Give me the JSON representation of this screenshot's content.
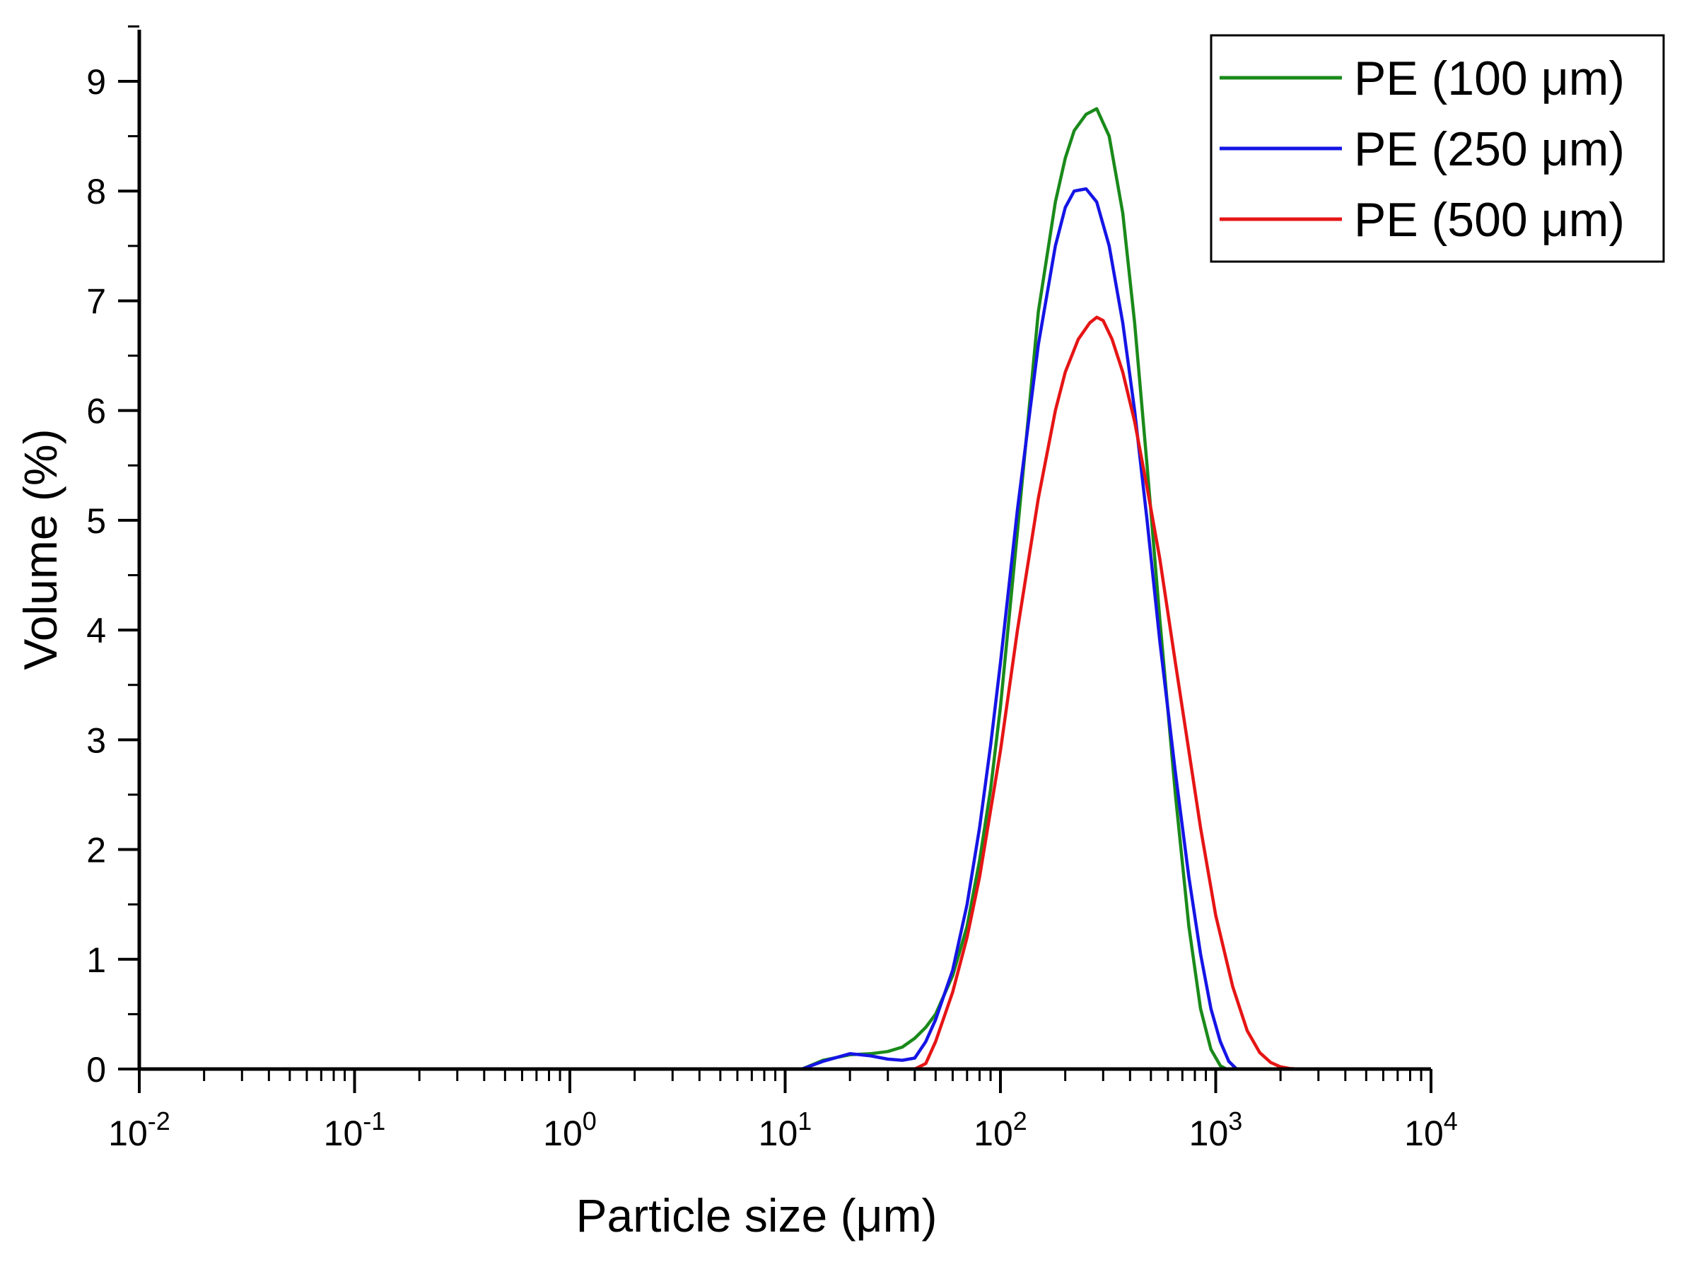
{
  "chart_data": {
    "type": "line",
    "title": "",
    "xlabel": "Particle size (μm)",
    "ylabel": "Volume (%)",
    "xscale": "log",
    "xlim": [
      0.01,
      10000
    ],
    "ylim": [
      0,
      9.5
    ],
    "x_tick_labels": [
      {
        "base": "10",
        "exp": "-2"
      },
      {
        "base": "10",
        "exp": "-1"
      },
      {
        "base": "10",
        "exp": "0"
      },
      {
        "base": "10",
        "exp": "1"
      },
      {
        "base": "10",
        "exp": "2"
      },
      {
        "base": "10",
        "exp": "3"
      },
      {
        "base": "10",
        "exp": "4"
      }
    ],
    "y_tick_labels": [
      "0",
      "1",
      "2",
      "3",
      "4",
      "5",
      "6",
      "7",
      "8",
      "9"
    ],
    "legend_position": "top-right",
    "grid": false,
    "series": [
      {
        "name": "PE (100 μm)",
        "color": "#1a8a1a",
        "x": [
          0.01,
          12,
          15,
          20,
          25,
          30,
          35,
          40,
          45,
          50,
          60,
          70,
          80,
          90,
          100,
          120,
          150,
          180,
          200,
          220,
          250,
          280,
          320,
          370,
          420,
          480,
          550,
          650,
          750,
          850,
          950,
          1050,
          1120,
          10000
        ],
        "y": [
          0,
          0,
          0.08,
          0.13,
          0.14,
          0.16,
          0.2,
          0.28,
          0.38,
          0.5,
          0.85,
          1.3,
          1.9,
          2.55,
          3.3,
          4.9,
          6.9,
          7.9,
          8.3,
          8.55,
          8.7,
          8.75,
          8.5,
          7.8,
          6.8,
          5.5,
          4.1,
          2.5,
          1.3,
          0.55,
          0.18,
          0.03,
          0,
          0
        ]
      },
      {
        "name": "PE (250 μm)",
        "color": "#1515e6",
        "x": [
          0.01,
          12,
          15,
          20,
          25,
          30,
          35,
          40,
          45,
          50,
          60,
          70,
          80,
          90,
          100,
          120,
          150,
          180,
          200,
          220,
          250,
          280,
          320,
          370,
          420,
          480,
          550,
          650,
          750,
          850,
          950,
          1050,
          1150,
          1250,
          10000
        ],
        "y": [
          0,
          0,
          0.07,
          0.14,
          0.12,
          0.09,
          0.08,
          0.1,
          0.25,
          0.45,
          0.9,
          1.5,
          2.2,
          2.95,
          3.7,
          5.1,
          6.6,
          7.5,
          7.85,
          8.0,
          8.02,
          7.9,
          7.5,
          6.8,
          6.0,
          5.0,
          3.9,
          2.7,
          1.75,
          1.05,
          0.55,
          0.25,
          0.07,
          0,
          0
        ]
      },
      {
        "name": "PE (500 μm)",
        "color": "#e61515",
        "x": [
          0.01,
          12,
          20,
          30,
          40,
          45,
          50,
          60,
          70,
          80,
          100,
          120,
          150,
          180,
          200,
          230,
          260,
          280,
          300,
          330,
          370,
          420,
          480,
          550,
          650,
          750,
          850,
          1000,
          1200,
          1400,
          1600,
          1800,
          2000,
          2200,
          2400,
          10000
        ],
        "y": [
          0,
          0,
          0,
          0,
          0,
          0.05,
          0.25,
          0.7,
          1.2,
          1.75,
          2.9,
          4.0,
          5.2,
          6.0,
          6.35,
          6.65,
          6.8,
          6.85,
          6.82,
          6.65,
          6.35,
          5.9,
          5.3,
          4.65,
          3.7,
          2.9,
          2.2,
          1.4,
          0.75,
          0.35,
          0.15,
          0.06,
          0.02,
          0.005,
          0,
          0
        ]
      }
    ]
  }
}
